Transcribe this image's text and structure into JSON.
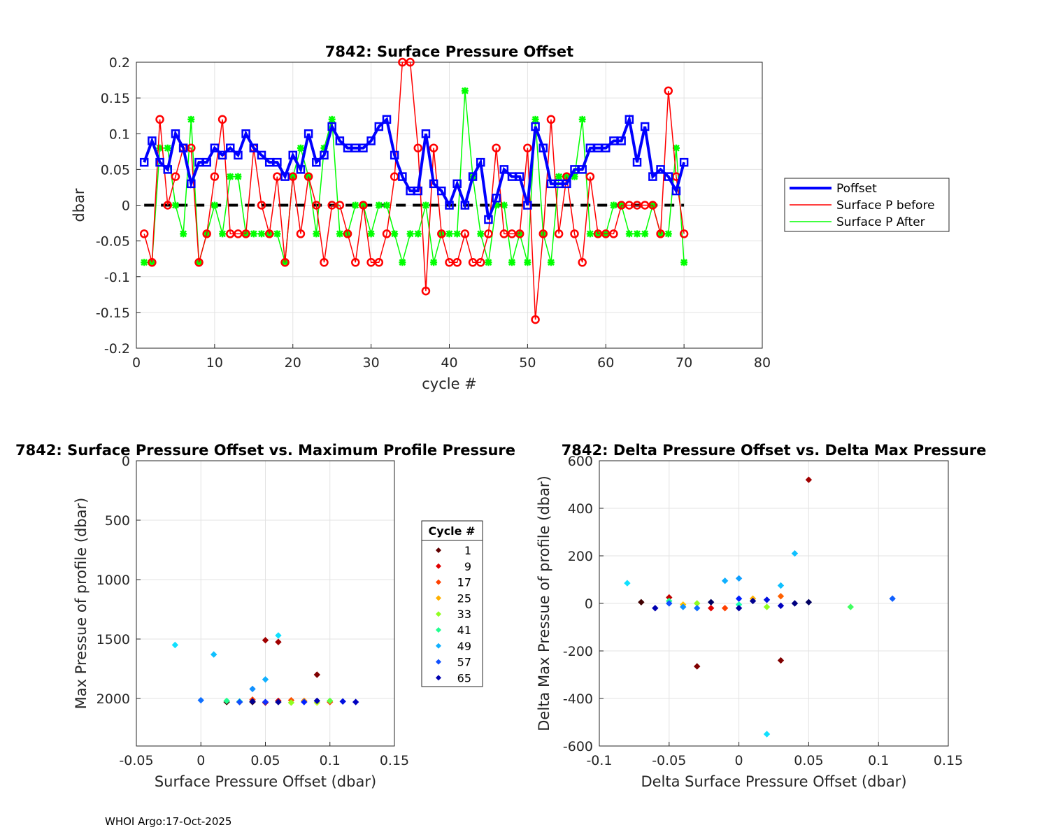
{
  "footer": "WHOI Argo:17-Oct-2025",
  "chart_data": [
    {
      "type": "line",
      "title": "7842: Surface Pressure Offset",
      "xlabel": "cycle #",
      "ylabel": "dbar",
      "xlim": [
        0,
        80
      ],
      "ylim": [
        -0.2,
        0.2
      ],
      "xticks": [
        0,
        10,
        20,
        30,
        40,
        50,
        60,
        70,
        80
      ],
      "yticks": [
        -0.2,
        -0.15,
        -0.1,
        -0.05,
        0,
        0.05,
        0.1,
        0.15,
        0.2
      ],
      "ytick_labels": [
        "-0.2",
        "-0.15",
        "-0.1",
        "-0.05",
        "0",
        "0.05",
        "0.1",
        "0.15",
        "0.2"
      ],
      "grid": true,
      "legend_position": "right",
      "x": [
        1,
        2,
        3,
        4,
        5,
        6,
        7,
        8,
        9,
        10,
        11,
        12,
        13,
        14,
        15,
        16,
        17,
        18,
        19,
        20,
        21,
        22,
        23,
        24,
        25,
        26,
        27,
        28,
        29,
        30,
        31,
        32,
        33,
        34,
        35,
        36,
        37,
        38,
        39,
        40,
        41,
        42,
        43,
        44,
        45,
        46,
        47,
        48,
        49,
        50,
        51,
        52,
        53,
        54,
        55,
        56,
        57,
        58,
        59,
        60,
        61,
        62,
        63,
        64,
        65,
        66,
        67,
        68,
        69,
        70
      ],
      "series": [
        {
          "name": "Poffset",
          "color": "#0000ff",
          "values": [
            0.06,
            0.09,
            0.06,
            0.05,
            0.1,
            0.08,
            0.03,
            0.06,
            0.06,
            0.08,
            0.07,
            0.08,
            0.07,
            0.1,
            0.08,
            0.07,
            0.06,
            0.06,
            0.04,
            0.07,
            0.05,
            0.1,
            0.06,
            0.07,
            0.11,
            0.09,
            0.08,
            0.08,
            0.08,
            0.09,
            0.11,
            0.12,
            0.07,
            0.04,
            0.02,
            0.02,
            0.1,
            0.03,
            0.02,
            0.0,
            0.03,
            0.0,
            0.04,
            0.06,
            -0.02,
            0.01,
            0.05,
            0.04,
            0.04,
            0.0,
            0.11,
            0.08,
            0.03,
            0.03,
            0.03,
            0.05,
            0.05,
            0.08,
            0.08,
            0.08,
            0.09,
            0.09,
            0.12,
            0.06,
            0.11,
            0.04,
            0.05,
            0.04,
            0.02,
            0.06
          ]
        },
        {
          "name": "Surface P before",
          "color": "#ff0000",
          "values": [
            -0.04,
            -0.08,
            0.12,
            0.0,
            0.04,
            0.08,
            0.08,
            -0.08,
            -0.04,
            0.04,
            0.12,
            -0.04,
            -0.04,
            -0.04,
            0.08,
            0.0,
            -0.04,
            0.04,
            -0.08,
            0.04,
            -0.04,
            0.04,
            0.0,
            -0.08,
            0.0,
            0.0,
            -0.04,
            -0.08,
            0.0,
            -0.08,
            -0.08,
            -0.04,
            0.04,
            0.2,
            0.2,
            0.08,
            -0.12,
            0.08,
            -0.04,
            -0.08,
            -0.08,
            -0.04,
            -0.08,
            -0.08,
            -0.04,
            0.08,
            -0.04,
            -0.04,
            -0.04,
            0.08,
            -0.16,
            -0.04,
            0.12,
            -0.04,
            0.04,
            -0.04,
            -0.08,
            0.04,
            -0.04,
            -0.04,
            -0.04,
            0.0,
            0.0,
            0.0,
            0.0,
            0.0,
            -0.04,
            0.16,
            0.04,
            -0.04
          ]
        },
        {
          "name": "Surface P After",
          "color": "#00ff00",
          "values": [
            -0.08,
            -0.08,
            0.08,
            0.08,
            0.0,
            -0.04,
            0.12,
            -0.08,
            -0.04,
            0.0,
            -0.04,
            0.04,
            0.04,
            -0.04,
            -0.04,
            -0.04,
            -0.04,
            -0.04,
            -0.08,
            0.04,
            0.08,
            0.04,
            -0.04,
            0.08,
            0.12,
            -0.04,
            -0.04,
            0.0,
            0.0,
            -0.04,
            0.0,
            0.0,
            -0.04,
            -0.08,
            -0.04,
            -0.04,
            0.0,
            -0.08,
            -0.04,
            -0.04,
            -0.04,
            0.16,
            0.04,
            -0.04,
            -0.08,
            0.0,
            0.0,
            -0.08,
            -0.04,
            -0.08,
            0.12,
            -0.04,
            -0.08,
            0.04,
            0.04,
            0.04,
            0.12,
            -0.04,
            -0.04,
            -0.04,
            0.0,
            0.0,
            -0.04,
            -0.04,
            -0.04,
            0.0,
            -0.04,
            -0.04,
            0.08,
            -0.08
          ]
        }
      ],
      "reference_line": {
        "y": 0,
        "style": "dashed",
        "color": "#000000",
        "x_range": [
          1,
          70
        ]
      }
    },
    {
      "type": "scatter",
      "title": "7842: Surface Pressure Offset vs. Maximum Profile Pressure",
      "xlabel": "Surface Pressure Offset (dbar)",
      "ylabel": "Max Pressue of profile (dbar)",
      "xlim": [
        -0.05,
        0.15
      ],
      "ylim": [
        0,
        2400
      ],
      "y_reversed": true,
      "xticks": [
        -0.05,
        0,
        0.05,
        0.1,
        0.15
      ],
      "xtick_labels": [
        "-0.05",
        "0",
        "0.05",
        "0.1",
        "0.15"
      ],
      "yticks": [
        0,
        500,
        1000,
        1500,
        2000
      ],
      "grid": true,
      "legend_title": "Cycle #",
      "legend_entries": [
        "1",
        "9",
        "17",
        "25",
        "33",
        "41",
        "49",
        "57",
        "65"
      ],
      "legend_colors": [
        "#600000",
        "#e00000",
        "#ff4000",
        "#ffb000",
        "#90ff20",
        "#20ff90",
        "#10b0ff",
        "#1050ff",
        "#0000b0"
      ],
      "points": [
        {
          "x": 0.02,
          "y": 2030,
          "color": "#400000"
        },
        {
          "x": 0.03,
          "y": 2030,
          "color": "#400000"
        },
        {
          "x": 0.04,
          "y": 2030,
          "color": "#400000"
        },
        {
          "x": 0.05,
          "y": 1510,
          "color": "#a00000"
        },
        {
          "x": 0.06,
          "y": 1525,
          "color": "#a00000"
        },
        {
          "x": 0.09,
          "y": 1800,
          "color": "#800000"
        },
        {
          "x": 0.05,
          "y": 2035,
          "color": "#c00000"
        },
        {
          "x": 0.06,
          "y": 2020,
          "color": "#e00000"
        },
        {
          "x": 0.04,
          "y": 2010,
          "color": "#ff4000"
        },
        {
          "x": 0.07,
          "y": 2015,
          "color": "#ff5000"
        },
        {
          "x": 0.08,
          "y": 2020,
          "color": "#ff6000"
        },
        {
          "x": 0.1,
          "y": 2030,
          "color": "#ff4000"
        },
        {
          "x": 0.06,
          "y": 2030,
          "color": "#ffb000"
        },
        {
          "x": 0.08,
          "y": 2025,
          "color": "#ffd000"
        },
        {
          "x": 0.09,
          "y": 2035,
          "color": "#c0ff20"
        },
        {
          "x": 0.07,
          "y": 2035,
          "color": "#90ff20"
        },
        {
          "x": 0.1,
          "y": 2020,
          "color": "#60ff40"
        },
        {
          "x": 0.02,
          "y": 2020,
          "color": "#20ff90"
        },
        {
          "x": 0.03,
          "y": 2025,
          "color": "#20ffb0"
        },
        {
          "x": -0.02,
          "y": 1550,
          "color": "#10e0ff"
        },
        {
          "x": 0.01,
          "y": 1630,
          "color": "#10c0ff"
        },
        {
          "x": 0.06,
          "y": 1470,
          "color": "#10e0ff"
        },
        {
          "x": 0.05,
          "y": 1840,
          "color": "#10b0ff"
        },
        {
          "x": 0.04,
          "y": 1920,
          "color": "#1090ff"
        },
        {
          "x": 0.0,
          "y": 2015,
          "color": "#1070ff"
        },
        {
          "x": 0.03,
          "y": 2030,
          "color": "#1050ff"
        },
        {
          "x": 0.05,
          "y": 2030,
          "color": "#1030ff"
        },
        {
          "x": 0.08,
          "y": 2030,
          "color": "#0020ff"
        },
        {
          "x": 0.11,
          "y": 2025,
          "color": "#0010e0"
        },
        {
          "x": 0.12,
          "y": 2030,
          "color": "#0000c0"
        },
        {
          "x": 0.09,
          "y": 2020,
          "color": "#0000b0"
        },
        {
          "x": 0.06,
          "y": 2030,
          "color": "#0000a0"
        },
        {
          "x": 0.04,
          "y": 2025,
          "color": "#000090"
        }
      ]
    },
    {
      "type": "scatter",
      "title": "7842: Delta Pressure Offset vs. Delta Max Pressure",
      "xlabel": "Delta Surface Pressure Offset (dbar)",
      "ylabel": "Delta Max Pressue of profile (dbar)",
      "xlim": [
        -0.1,
        0.15
      ],
      "ylim": [
        -600,
        600
      ],
      "xticks": [
        -0.1,
        -0.05,
        0,
        0.05,
        0.1,
        0.15
      ],
      "xtick_labels": [
        "-0.1",
        "-0.05",
        "0",
        "0.05",
        "0.1",
        "0.15"
      ],
      "yticks": [
        -600,
        -400,
        -200,
        0,
        200,
        400,
        600
      ],
      "grid": true,
      "points": [
        {
          "x": 0.05,
          "y": 520,
          "color": "#a00000"
        },
        {
          "x": -0.03,
          "y": -265,
          "color": "#800000"
        },
        {
          "x": 0.03,
          "y": -240,
          "color": "#800000"
        },
        {
          "x": -0.07,
          "y": 5,
          "color": "#400000"
        },
        {
          "x": -0.05,
          "y": 25,
          "color": "#c00000"
        },
        {
          "x": -0.02,
          "y": -20,
          "color": "#e00000"
        },
        {
          "x": -0.01,
          "y": -20,
          "color": "#ff4000"
        },
        {
          "x": 0.03,
          "y": 30,
          "color": "#ff6000"
        },
        {
          "x": 0.01,
          "y": 20,
          "color": "#ffb000"
        },
        {
          "x": -0.04,
          "y": -5,
          "color": "#ffc000"
        },
        {
          "x": -0.03,
          "y": 0,
          "color": "#90ff20"
        },
        {
          "x": 0.02,
          "y": -15,
          "color": "#90ff20"
        },
        {
          "x": 0.08,
          "y": -15,
          "color": "#40ff60"
        },
        {
          "x": -0.05,
          "y": 10,
          "color": "#20ff90"
        },
        {
          "x": 0.0,
          "y": -5,
          "color": "#20ffb0"
        },
        {
          "x": -0.08,
          "y": 85,
          "color": "#10e0ff"
        },
        {
          "x": 0.02,
          "y": -550,
          "color": "#10e0ff"
        },
        {
          "x": 0.04,
          "y": 210,
          "color": "#10c0ff"
        },
        {
          "x": -0.01,
          "y": 95,
          "color": "#10b0ff"
        },
        {
          "x": 0.0,
          "y": 105,
          "color": "#10a0ff"
        },
        {
          "x": 0.03,
          "y": 75,
          "color": "#10c0ff"
        },
        {
          "x": -0.04,
          "y": -15,
          "color": "#1090ff"
        },
        {
          "x": -0.03,
          "y": -20,
          "color": "#1070ff"
        },
        {
          "x": 0.11,
          "y": 20,
          "color": "#1060ff"
        },
        {
          "x": -0.05,
          "y": 0,
          "color": "#1050ff"
        },
        {
          "x": 0.0,
          "y": 20,
          "color": "#0020ff"
        },
        {
          "x": 0.02,
          "y": 15,
          "color": "#0010e0"
        },
        {
          "x": 0.03,
          "y": -10,
          "color": "#0000c0"
        },
        {
          "x": -0.06,
          "y": -20,
          "color": "#0000b0"
        },
        {
          "x": 0.0,
          "y": -20,
          "color": "#0000a0"
        },
        {
          "x": 0.01,
          "y": 10,
          "color": "#000090"
        },
        {
          "x": 0.04,
          "y": 0,
          "color": "#000080"
        },
        {
          "x": 0.05,
          "y": 5,
          "color": "#000060"
        },
        {
          "x": -0.02,
          "y": 5,
          "color": "#000060"
        }
      ]
    }
  ]
}
